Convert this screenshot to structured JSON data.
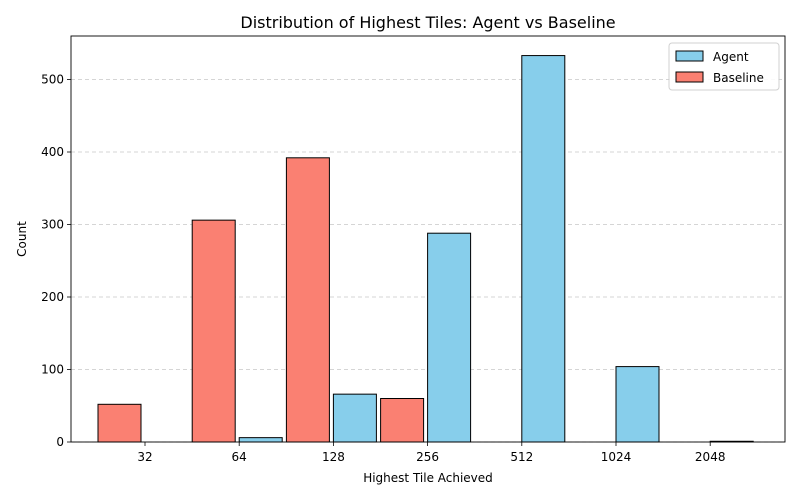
{
  "chart_data": {
    "type": "bar",
    "title": "Distribution of Highest Tiles: Agent vs Baseline",
    "xlabel": "Highest Tile Achieved",
    "ylabel": "Count",
    "categories": [
      "32",
      "64",
      "128",
      "256",
      "512",
      "1024",
      "2048"
    ],
    "ylim": [
      0,
      560
    ],
    "yticks": [
      0,
      100,
      200,
      300,
      400,
      500
    ],
    "grid": "y-dashed",
    "legend_position": "top-right",
    "series": [
      {
        "name": "Agent",
        "color": "#87ceeb",
        "values": [
          0,
          6,
          66,
          288,
          533,
          104,
          1
        ]
      },
      {
        "name": "Baseline",
        "color": "#fa8072",
        "values": [
          52,
          306,
          392,
          60,
          0,
          0,
          0
        ]
      }
    ],
    "bar_edge_color": "#000000"
  }
}
